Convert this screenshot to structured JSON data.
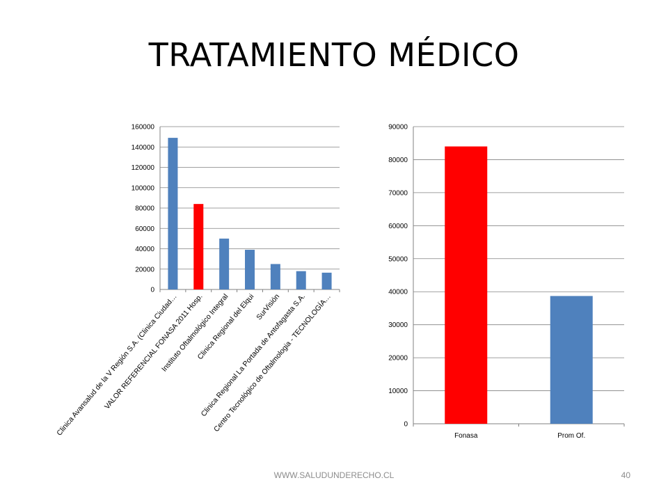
{
  "slide": {
    "title": "TRATAMIENTO MÉDICO",
    "footer_url": "WWW.SALUDUNDERECHO.CL",
    "page_number": "40"
  },
  "chart_data": [
    {
      "type": "bar",
      "categories": [
        "Clinica Avansalud de la V Región S.A. (Clinica Ciudad…",
        "VALOR REFERENCIAL FONASA 2011 Hosp.",
        "Instituto Oftalmológico Integral",
        "Clinica Regional del Elqui",
        "SurVisión",
        "Clinica Regional La Portada de Antofagasta S.A.",
        "Centro Tecnológico de Oftalmologia - TECNOLOGÍA…"
      ],
      "values": [
        149000,
        84000,
        50000,
        39000,
        25000,
        18000,
        16500
      ],
      "colors": [
        "#4f81bd",
        "#ff0000",
        "#4f81bd",
        "#4f81bd",
        "#4f81bd",
        "#4f81bd",
        "#4f81bd"
      ],
      "yticks": [
        "0",
        "20000",
        "40000",
        "60000",
        "80000",
        "100000",
        "120000",
        "140000",
        "160000"
      ],
      "ylim": [
        0,
        160000
      ],
      "grid": true,
      "legend": "none"
    },
    {
      "type": "bar",
      "categories": [
        "Fonasa",
        "Prom Of."
      ],
      "values": [
        84000,
        38700
      ],
      "colors": [
        "#ff0000",
        "#4f81bd"
      ],
      "yticks": [
        "0",
        "10000",
        "20000",
        "30000",
        "40000",
        "50000",
        "60000",
        "70000",
        "80000",
        "90000"
      ],
      "ylim": [
        0,
        90000
      ],
      "grid": true,
      "legend": "none"
    }
  ]
}
